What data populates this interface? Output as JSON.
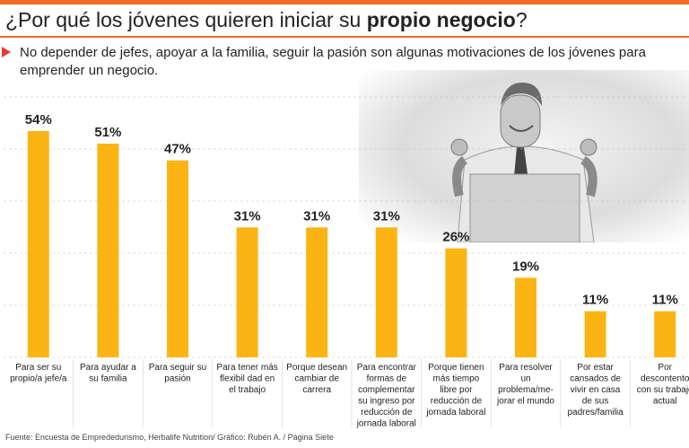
{
  "header": {
    "title_prefix": "¿Por qué los jóvenes quieren iniciar su ",
    "title_bold": "propio negocio",
    "title_suffix": "?",
    "subtitle": "No depender de jefes, apoyar a la familia, seguir la pasión son algunas motivaciones de los jóvenes para emprender un negocio."
  },
  "colors": {
    "accent": "#f26a21",
    "bar": "#fbb414",
    "bullet": "#e53935",
    "grid": "#bbbbbb"
  },
  "photo": {
    "description_icon": "man-celebrating-at-laptop-image"
  },
  "chart_data": {
    "type": "bar",
    "title": "¿Por qué los jóvenes quieren iniciar su propio negocio?",
    "ylim": [
      0,
      60
    ],
    "grid": true,
    "categories": [
      [
        "Para ser su",
        "propio/a jefe/a"
      ],
      [
        "Para ayudar a",
        "su familia"
      ],
      [
        "Para seguir su",
        "pasión"
      ],
      [
        "Para tener más",
        "flexibil dad en",
        "el trabajo"
      ],
      [
        "Porque desean",
        "cambiar de",
        "carrera"
      ],
      [
        "Para encontrar",
        "formas de",
        "complementar",
        "su ingreso por",
        "reducción de",
        "jornada laboral"
      ],
      [
        "Porque tienen",
        "más tiempo",
        "libre por",
        "reducción de",
        "jornada laboral"
      ],
      [
        "Para resolver",
        "un",
        "problema/me-",
        "jorar el mundo"
      ],
      [
        "Por estar",
        "cansados de",
        "vivir en casa",
        "de sus",
        "padres/familia"
      ],
      [
        "Por",
        "descontento",
        "con su trabajo",
        "actual"
      ]
    ],
    "values": [
      54,
      51,
      47,
      31,
      31,
      31,
      26,
      19,
      11,
      11
    ],
    "value_labels": [
      "54%",
      "51%",
      "47%",
      "31%",
      "31%",
      "31%",
      "26%",
      "19%",
      "11%",
      "11%"
    ]
  },
  "footer": {
    "source": "Fuente: Encuesta de Emprededurismo, Herbalife Nutrition/ Gráfico: Rubén A. / Página Siete"
  }
}
